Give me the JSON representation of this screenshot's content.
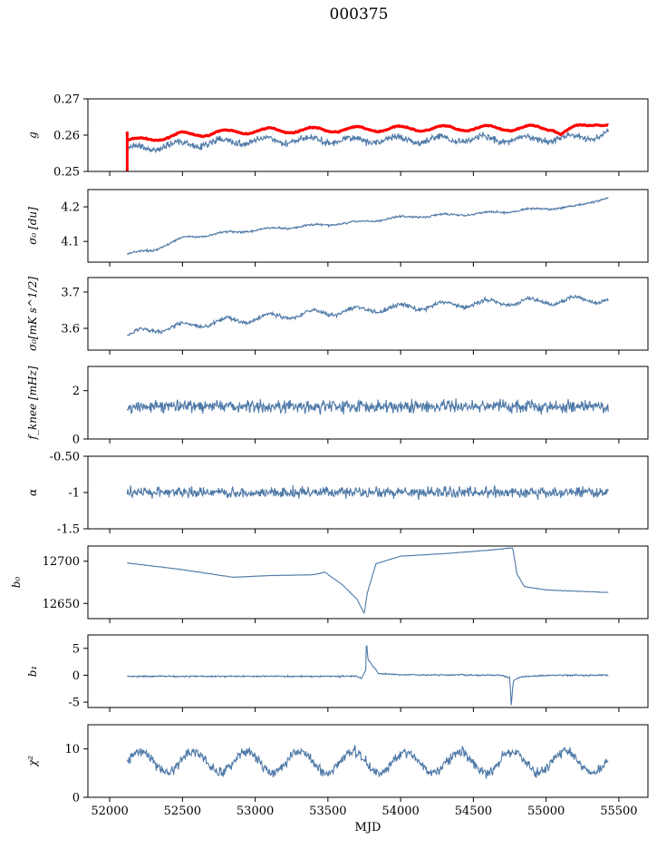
{
  "figure": {
    "title": "000375"
  },
  "chart_data": [
    {
      "type": "line",
      "ylabel": "g",
      "ylim": [
        0.25,
        0.27
      ],
      "yticks": [
        0.25,
        0.26,
        0.27
      ],
      "series": [
        {
          "color": "#ff0000",
          "style": "thick",
          "base": 0.2605,
          "noise": 0.00035,
          "wave_amp": 0.0007,
          "wave_period": 300,
          "keypoints": [
            [
              52120,
              0.2585
            ],
            [
              52200,
              0.2585
            ],
            [
              52500,
              0.2601
            ],
            [
              53000,
              0.2612
            ],
            [
              54000,
              0.2618
            ],
            [
              55050,
              0.262
            ],
            [
              55100,
              0.2605
            ],
            [
              55250,
              0.2625
            ],
            [
              55350,
              0.2635
            ],
            [
              55500,
              0.262
            ]
          ]
        },
        {
          "color": "#4e79a7",
          "style": "thin",
          "noise": 0.0008,
          "wave_amp": 0.0008,
          "wave_period": 300,
          "keypoints": [
            [
              52120,
              0.256
            ],
            [
              52500,
              0.2575
            ],
            [
              53000,
              0.2585
            ],
            [
              54000,
              0.2587
            ],
            [
              55000,
              0.259
            ],
            [
              55300,
              0.2595
            ],
            [
              55420,
              0.2605
            ]
          ]
        }
      ],
      "spike": {
        "x": 52120,
        "y_from": 0.261,
        "y_to": 0.25
      }
    },
    {
      "type": "line",
      "ylabel": "σ₀ [du]",
      "ylim": [
        4.04,
        4.25
      ],
      "yticks": [
        4.1,
        4.2
      ],
      "series": [
        {
          "color": "#4e79a7",
          "noise": 0.0025,
          "wave_amp": 0.003,
          "wave_period": 300,
          "keypoints": [
            [
              52120,
              4.063
            ],
            [
              52300,
              4.075
            ],
            [
              52500,
              4.11
            ],
            [
              52800,
              4.125
            ],
            [
              53200,
              4.14
            ],
            [
              53700,
              4.155
            ],
            [
              54000,
              4.17
            ],
            [
              54500,
              4.18
            ],
            [
              55000,
              4.195
            ],
            [
              55200,
              4.2
            ],
            [
              55350,
              4.22
            ],
            [
              55420,
              4.225
            ]
          ]
        }
      ]
    },
    {
      "type": "line",
      "ylabel": "σ₀[mK s^1/2]",
      "ylim": [
        3.54,
        3.74
      ],
      "yticks": [
        3.6,
        3.7
      ],
      "series": [
        {
          "color": "#4e79a7",
          "noise": 0.005,
          "wave_amp": 0.009,
          "wave_period": 300,
          "keypoints": [
            [
              52120,
              3.58
            ],
            [
              52300,
              3.598
            ],
            [
              52700,
              3.615
            ],
            [
              53200,
              3.635
            ],
            [
              53700,
              3.65
            ],
            [
              54200,
              3.662
            ],
            [
              54700,
              3.672
            ],
            [
              55000,
              3.675
            ],
            [
              55420,
              3.68
            ]
          ]
        }
      ]
    },
    {
      "type": "line",
      "ylabel": "f_knee [mHz]",
      "ylim": [
        0,
        3
      ],
      "yticks": [
        0,
        2
      ],
      "series": [
        {
          "color": "#4e79a7",
          "noise": 0.22,
          "wave_amp": 0.0,
          "wave_period": 300,
          "keypoints": [
            [
              52120,
              1.35
            ],
            [
              55420,
              1.35
            ]
          ]
        }
      ]
    },
    {
      "type": "line",
      "ylabel": "α",
      "ylim": [
        -1.5,
        -0.5
      ],
      "yticks": [
        -1.5,
        -1.0,
        -0.5
      ],
      "series": [
        {
          "color": "#4e79a7",
          "noise": 0.065,
          "wave_amp": 0.0,
          "wave_period": 300,
          "keypoints": [
            [
              52120,
              -1.0
            ],
            [
              55420,
              -1.0
            ]
          ]
        }
      ]
    },
    {
      "type": "line",
      "ylabel": "b₀",
      "ylim": [
        12632,
        12718
      ],
      "yticks": [
        12650,
        12700
      ],
      "series": [
        {
          "color": "#4e79a7",
          "noise": 0.25,
          "wave_amp": 0.0,
          "wave_period": 300,
          "keypoints": [
            [
              52120,
              12698
            ],
            [
              52500,
              12690
            ],
            [
              52850,
              12681
            ],
            [
              53100,
              12683
            ],
            [
              53400,
              12684
            ],
            [
              53480,
              12687
            ],
            [
              53600,
              12672
            ],
            [
              53700,
              12655
            ],
            [
              53750,
              12638
            ],
            [
              53770,
              12662
            ],
            [
              53830,
              12697
            ],
            [
              54000,
              12706
            ],
            [
              54300,
              12709
            ],
            [
              54600,
              12713
            ],
            [
              54770,
              12716
            ],
            [
              54800,
              12685
            ],
            [
              54850,
              12670
            ],
            [
              55000,
              12666
            ],
            [
              55420,
              12663
            ]
          ]
        }
      ]
    },
    {
      "type": "line",
      "ylabel": "b₁",
      "ylim": [
        -6,
        7.5
      ],
      "yticks": [
        -5,
        0,
        5
      ],
      "series": [
        {
          "color": "#4e79a7",
          "noise": 0.12,
          "wave_amp": 0.0,
          "wave_period": 300,
          "keypoints": [
            [
              52120,
              -0.2
            ],
            [
              53700,
              -0.2
            ],
            [
              53730,
              -0.6
            ],
            [
              53760,
              1.0
            ],
            [
              53765,
              6.5
            ],
            [
              53775,
              3.0
            ],
            [
              53800,
              2.0
            ],
            [
              53850,
              0.3
            ],
            [
              54000,
              0.1
            ],
            [
              54700,
              0.0
            ],
            [
              54750,
              -0.5
            ],
            [
              54760,
              -5.5
            ],
            [
              54775,
              -1.0
            ],
            [
              54820,
              -0.3
            ],
            [
              55000,
              0.0
            ],
            [
              55420,
              0.0
            ]
          ]
        }
      ]
    },
    {
      "type": "line",
      "ylabel": "χ²",
      "ylim": [
        0,
        15
      ],
      "yticks": [
        0,
        10
      ],
      "xlabel": "MJD",
      "xticks": [
        52000,
        52500,
        53000,
        53500,
        54000,
        54500,
        55000,
        55500
      ],
      "series": [
        {
          "color": "#4e79a7",
          "noise": 0.9,
          "wave_amp": 2.2,
          "wave_period": 365.25,
          "base": 7.3,
          "keypoints": [
            [
              52120,
              7.3
            ],
            [
              55420,
              7.3
            ]
          ]
        }
      ]
    }
  ]
}
